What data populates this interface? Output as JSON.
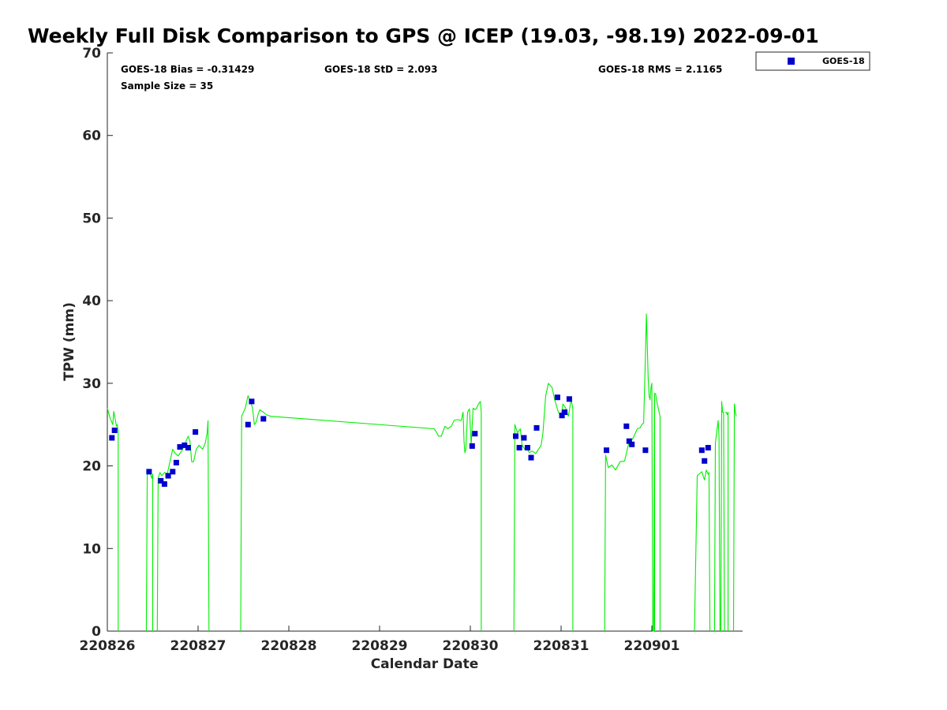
{
  "chart_data": {
    "type": "scatter",
    "title": "Weekly Full Disk Comparison to GPS @ ICEP (19.03, -98.19) 2022-09-01",
    "xlabel": "Calendar Date",
    "ylabel": "TPW (mm)",
    "xlim": [
      0,
      7
    ],
    "ylim": [
      0,
      70
    ],
    "x_ticks": [
      0,
      1,
      2,
      3,
      4,
      5,
      6
    ],
    "x_tick_labels": [
      "220826",
      "220827",
      "220828",
      "220829",
      "220830",
      "220831",
      "220901"
    ],
    "y_ticks": [
      0,
      10,
      20,
      30,
      40,
      50,
      60,
      70
    ],
    "y_tick_labels": [
      "0",
      "10",
      "20",
      "30",
      "40",
      "50",
      "60",
      "70"
    ],
    "grid": false,
    "legend_position": "top-right",
    "stats": {
      "bias": "GOES-18 Bias = -0.31429",
      "std": "GOES-18 StD = 2.093",
      "rms": "GOES-18 RMS = 2.1165",
      "sample": "Sample Size = 35"
    },
    "series": [
      {
        "name": "GOES-18",
        "kind": "scatter",
        "color": "#0000cc",
        "x": [
          0.05,
          0.08,
          0.46,
          0.59,
          0.63,
          0.67,
          0.72,
          0.76,
          0.8,
          0.85,
          0.89,
          0.97,
          1.55,
          1.59,
          1.72,
          4.02,
          4.05,
          4.5,
          4.54,
          4.59,
          4.63,
          4.67,
          4.73,
          4.96,
          5.01,
          5.04,
          5.09,
          5.5,
          5.72,
          5.75,
          5.78,
          5.93,
          6.55,
          6.58,
          6.62
        ],
        "y": [
          23.4,
          24.3,
          19.3,
          18.2,
          17.8,
          18.8,
          19.3,
          20.4,
          22.3,
          22.5,
          22.2,
          24.1,
          25.0,
          27.8,
          25.7,
          22.4,
          23.9,
          23.6,
          22.2,
          23.4,
          22.2,
          21.0,
          24.6,
          28.3,
          26.1,
          26.5,
          28.1,
          21.9,
          24.8,
          23.0,
          22.6,
          21.9,
          21.9,
          20.6,
          22.2
        ]
      },
      {
        "name": "GPS",
        "kind": "line",
        "color": "#00ee00",
        "segments": [
          {
            "x": [
              0.0,
              0.03,
              0.06,
              0.07,
              0.09,
              0.1,
              0.11,
              0.12,
              0.12
            ],
            "y": [
              27.0,
              25.8,
              25.0,
              26.6,
              25.5,
              24.8,
              25.0,
              24.0,
              0.0
            ]
          },
          {
            "x": [
              0.43,
              0.44,
              0.46,
              0.49,
              0.5,
              0.5
            ],
            "y": [
              0.0,
              19.0,
              19.5,
              18.5,
              19.0,
              0.0
            ]
          },
          {
            "x": [
              0.55,
              0.56,
              0.58,
              0.6,
              0.63,
              0.66,
              0.69,
              0.72,
              0.75,
              0.78,
              0.82,
              0.86,
              0.89,
              0.91,
              0.93,
              0.95,
              0.98,
              1.01,
              1.05,
              1.08,
              1.1,
              1.11
            ],
            "y": [
              0.0,
              18.5,
              19.2,
              18.8,
              19.2,
              19.0,
              20.5,
              22.0,
              21.5,
              21.2,
              21.8,
              22.8,
              23.6,
              23.0,
              20.5,
              20.5,
              22.0,
              22.5,
              22.0,
              22.8,
              24.0,
              25.5
            ]
          },
          {
            "x": [
              1.11,
              1.12
            ],
            "y": [
              25.5,
              0.0
            ]
          },
          {
            "x": [
              1.47,
              1.48,
              1.52,
              1.55,
              1.57,
              1.6,
              1.62,
              1.64,
              1.66,
              1.68,
              1.72,
              1.75,
              1.8,
              3.6,
              3.62,
              3.65,
              3.68,
              3.72,
              3.75,
              3.79,
              3.82,
              3.86,
              3.9,
              3.92,
              3.93,
              3.94,
              3.95,
              3.97,
              3.99,
              4.01,
              4.03,
              4.05,
              4.07,
              4.09,
              4.11,
              4.12,
              4.12
            ],
            "y": [
              0.0,
              26.0,
              27.0,
              28.5,
              28.0,
              27.0,
              25.0,
              25.3,
              26.2,
              26.8,
              26.5,
              26.2,
              26.0,
              24.5,
              24.2,
              23.6,
              23.6,
              24.8,
              24.5,
              24.8,
              25.5,
              25.6,
              25.5,
              26.5,
              23.0,
              21.6,
              22.0,
              26.5,
              26.9,
              22.5,
              27.0,
              26.8,
              27.0,
              27.5,
              27.8,
              26.5,
              0.0
            ]
          },
          {
            "x": [
              4.48,
              4.49,
              4.52,
              4.55,
              4.57,
              4.6,
              4.63,
              4.65,
              4.68,
              4.72,
              4.75,
              4.78,
              4.8,
              4.83,
              4.86,
              4.9,
              4.93,
              4.97,
              5.0,
              5.02,
              5.05,
              5.08,
              5.11,
              5.12,
              5.13,
              5.13
            ],
            "y": [
              0.0,
              25.0,
              24.0,
              24.5,
              22.5,
              22.0,
              22.0,
              21.6,
              21.8,
              21.5,
              22.0,
              22.5,
              24.0,
              28.5,
              30.0,
              29.5,
              28.0,
              26.5,
              26.0,
              27.5,
              27.0,
              26.0,
              28.0,
              27.5,
              27.0,
              0.0
            ]
          },
          {
            "x": [
              5.48,
              5.49,
              5.52,
              5.56,
              5.6,
              5.65,
              5.7,
              5.74,
              5.77,
              5.8,
              5.84,
              5.87,
              5.89,
              5.91,
              5.93,
              5.94,
              5.96,
              5.97,
              5.98,
              5.99,
              6.0,
              6.01,
              6.02,
              6.03,
              6.03
            ],
            "y": [
              0.0,
              21.3,
              19.8,
              20.1,
              19.5,
              20.5,
              20.6,
              22.5,
              23.0,
              23.5,
              24.5,
              24.6,
              25.0,
              25.2,
              33.5,
              38.4,
              30.5,
              28.5,
              28.0,
              29.5,
              30.0,
              0.0,
              0.0,
              28.8,
              0.0
            ]
          },
          {
            "x": [
              6.04,
              6.06,
              6.07,
              6.08,
              6.09,
              6.09
            ],
            "y": [
              28.8,
              27.5,
              27.0,
              26.5,
              26.0,
              0.0
            ]
          },
          {
            "x": [
              6.47,
              6.5,
              6.52,
              6.55,
              6.58,
              6.6,
              6.62,
              6.63,
              6.64
            ],
            "y": [
              0.0,
              18.8,
              19.0,
              19.3,
              18.3,
              19.5,
              19.0,
              19.2,
              0.0
            ]
          },
          {
            "x": [
              6.69,
              6.7,
              6.73,
              6.74,
              6.75
            ],
            "y": [
              0.0,
              22.8,
              25.5,
              23.5,
              0.0
            ]
          },
          {
            "x": [
              6.76,
              6.77,
              6.78,
              6.79,
              6.8,
              6.8
            ],
            "y": [
              0.0,
              27.8,
              26.5,
              26.5,
              0.0,
              0.0
            ]
          },
          {
            "x": [
              6.81,
              6.82,
              6.83,
              6.84,
              6.84
            ],
            "y": [
              26.5,
              26.5,
              26.2,
              26.5,
              0.0
            ]
          },
          {
            "x": [
              6.9,
              6.91,
              6.92,
              6.93
            ],
            "y": [
              0.0,
              27.5,
              26.5,
              26.0
            ]
          }
        ]
      }
    ]
  }
}
